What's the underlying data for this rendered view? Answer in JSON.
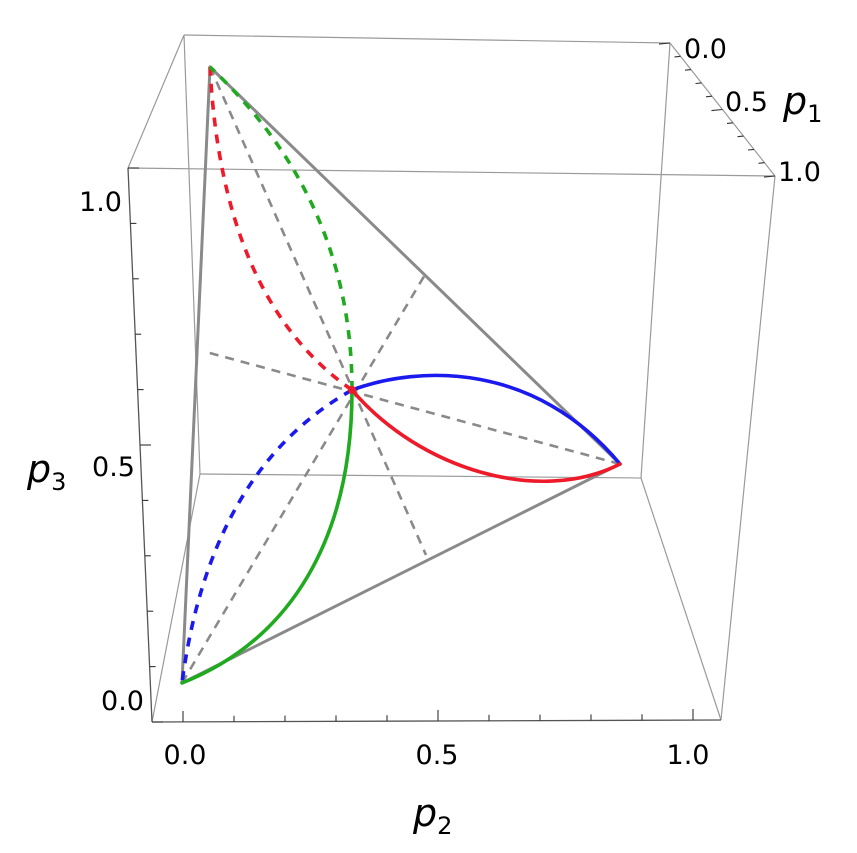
{
  "chart_data": {
    "type": "line",
    "axes": {
      "x": {
        "label": "p",
        "subscript": "2",
        "range": [
          0,
          1
        ],
        "ticks": [
          "0.0",
          "0.5",
          "1.0"
        ]
      },
      "y": {
        "label": "p",
        "subscript": "1",
        "range": [
          0,
          1
        ],
        "ticks": [
          "0.0",
          "0.5",
          "1.0"
        ]
      },
      "z": {
        "label": "p",
        "subscript": "3",
        "range": [
          0,
          1
        ],
        "ticks": [
          "0.0",
          "0.5",
          "1.0"
        ]
      }
    },
    "grid": false,
    "simplex_vertices": [
      {
        "p1": 1,
        "p2": 0,
        "p3": 0
      },
      {
        "p1": 0,
        "p2": 1,
        "p3": 0
      },
      {
        "p1": 0,
        "p2": 0,
        "p3": 1
      }
    ],
    "centroid": {
      "p1": 0.333,
      "p2": 0.333,
      "p3": 0.333
    },
    "series": [
      {
        "color": "#1a1aee",
        "solid_from": "centroid",
        "solid_to": "p2-vertex",
        "dashed_from": "centroid",
        "dashed_to": "p1-vertex"
      },
      {
        "color": "#ee1a2a",
        "solid_from": "centroid",
        "solid_to": "p2-vertex",
        "dashed_from": "centroid",
        "dashed_to": "p3-vertex"
      },
      {
        "color": "#1faa1f",
        "solid_from": "centroid",
        "solid_to": "p1-vertex",
        "dashed_from": "centroid",
        "dashed_to": "p3-vertex"
      }
    ],
    "colors": {
      "simplex": "#8a8a8a",
      "box": "#9a9a9a"
    }
  }
}
